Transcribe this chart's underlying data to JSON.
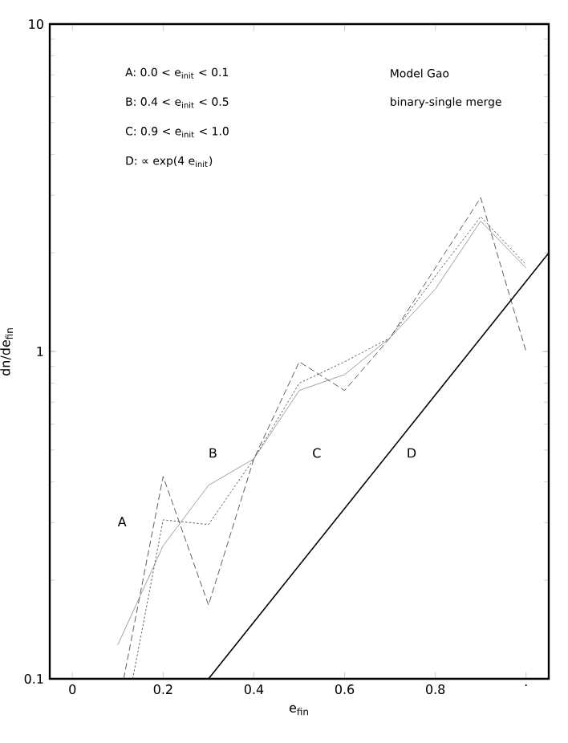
{
  "chart_data": {
    "type": "line",
    "xlabel": "e$_{fin}$",
    "ylabel": "dn/de$_{fin}$",
    "log": "y",
    "grid": false,
    "marker": "none",
    "xlim": [
      -0.05,
      1.05
    ],
    "ylim": [
      0.1,
      10
    ],
    "xticks": [
      0,
      0.2,
      0.4,
      0.6,
      0.8,
      {
        "value": 1,
        "label": "·"
      }
    ],
    "yticks": [
      0.1,
      1,
      10
    ],
    "series": [
      {
        "color": "#333333",
        "line_style": "dashed",
        "x": [
          0.113,
          0.2,
          0.3,
          0.4,
          0.5,
          0.6,
          0.7,
          0.8,
          0.9,
          1.0
        ],
        "values": [
          0.1,
          0.415,
          0.168,
          0.47,
          0.93,
          0.76,
          1.1,
          1.8,
          2.95,
          1.0
        ]
      },
      {
        "color": "#333333",
        "line_style": "dotted",
        "x": [
          0.133,
          0.2,
          0.3,
          0.4,
          0.5,
          0.6,
          0.7,
          0.8,
          0.9,
          1.0
        ],
        "values": [
          0.1,
          0.306,
          0.296,
          0.47,
          0.8,
          0.93,
          1.1,
          1.7,
          2.58,
          1.84
        ]
      },
      {
        "color": "#888888",
        "line_style": "solid",
        "x": [
          0.1,
          0.2,
          0.3,
          0.4,
          0.5,
          0.6,
          0.7,
          0.8,
          0.9,
          1.0
        ],
        "values": [
          0.127,
          0.255,
          0.39,
          0.47,
          0.76,
          0.85,
          1.1,
          1.55,
          2.5,
          1.8
        ]
      },
      {
        "color": "#000000",
        "line_style": "solid",
        "x": [
          0.3,
          1.05
        ],
        "values": [
          0.1,
          2.0
        ]
      }
    ],
    "annotations": [
      "A: 0.0 < e$_{init}$ < 0.1",
      "B: 0.4 < e$_{init}$ < 0.5",
      "C: 0.9 < e$_{init}$ < 1.0",
      "D: ∝ exp(4 e$_{init}$)",
      "Model Gao",
      "binary-single merge",
      "A",
      "B",
      "C",
      "D"
    ]
  }
}
